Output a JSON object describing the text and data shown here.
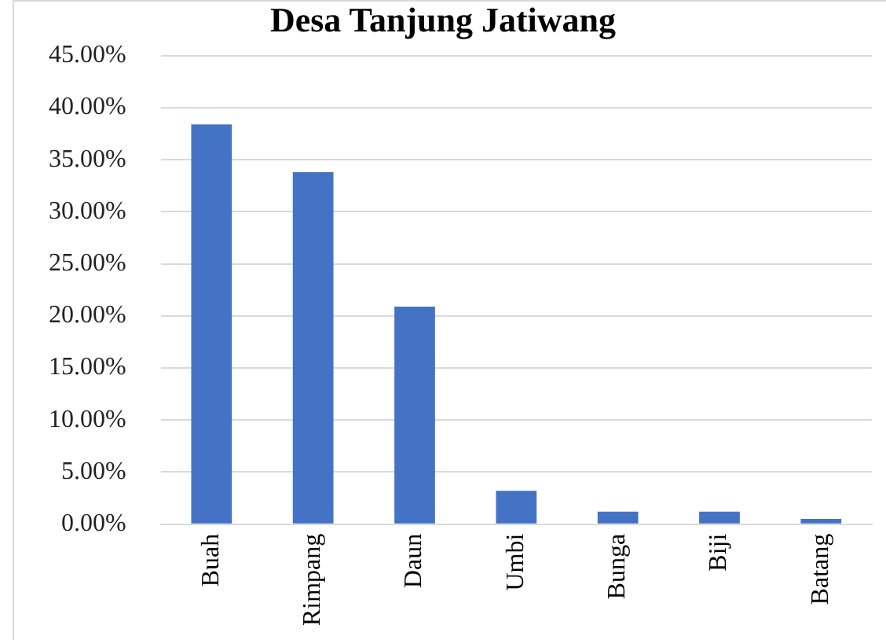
{
  "chart_data": {
    "type": "bar",
    "title": "Desa Tanjung Jatiwang",
    "categories": [
      "Buah",
      "Rimpang",
      "Daun",
      "Umbi",
      "Bunga",
      "Biji",
      "Batang"
    ],
    "values": [
      38.4,
      33.8,
      20.9,
      3.2,
      1.2,
      1.2,
      0.5
    ],
    "color": "#4472c4",
    "ylim": [
      0,
      45
    ],
    "yticks": [
      {
        "value": 0,
        "label": "0.00%"
      },
      {
        "value": 5,
        "label": "5.00%"
      },
      {
        "value": 10,
        "label": "10.00%"
      },
      {
        "value": 15,
        "label": "15.00%"
      },
      {
        "value": 20,
        "label": "20.00%"
      },
      {
        "value": 25,
        "label": "25.00%"
      },
      {
        "value": 30,
        "label": "30.00%"
      },
      {
        "value": 35,
        "label": "35.00%"
      },
      {
        "value": 40,
        "label": "40.00%"
      },
      {
        "value": 45,
        "label": "45.00%"
      }
    ],
    "grid": "y",
    "legend": false
  }
}
